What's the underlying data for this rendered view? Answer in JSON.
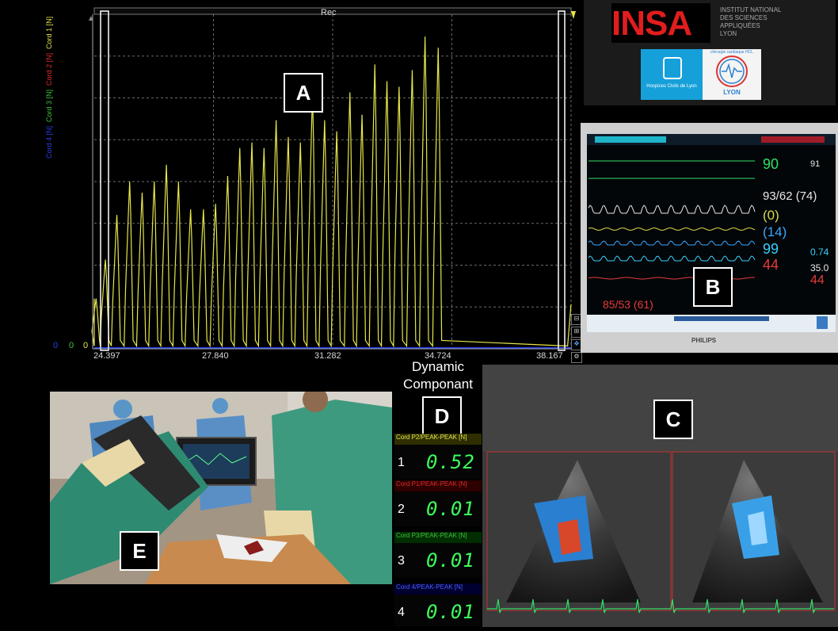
{
  "panel_a": {
    "label": "A",
    "header": "Rec",
    "legend": "Cord 4 [N]  Cord 3 [N]  Cord 2 [N]  Cord 1 [N]",
    "y_ticks": [
      "0",
      "0",
      "0"
    ],
    "x_ticks": [
      "24.397",
      "27.840",
      "31.282",
      "34.724",
      "38.167"
    ]
  },
  "chart_data": {
    "type": "line",
    "title": "Rec",
    "x": [
      24.397,
      24.62,
      24.95,
      25.3,
      25.65,
      26.0,
      26.35,
      26.7,
      27.05,
      27.4,
      27.75,
      28.1,
      28.45,
      28.8,
      29.15,
      29.5,
      29.85,
      30.2,
      30.55,
      30.9,
      31.25,
      31.6,
      31.95,
      32.3,
      32.65,
      33.0,
      33.35,
      33.7,
      34.05,
      34.4,
      34.75,
      35.1,
      35.45,
      35.8,
      36.15,
      36.5,
      36.85,
      37.2,
      37.55,
      37.9
    ],
    "peaks": [
      0.9,
      1.6,
      2.4,
      3.0,
      2.8,
      3.0,
      3.3,
      3.0,
      2.5,
      2.5,
      2.6,
      3.1,
      3.6,
      3.7,
      3.6,
      4.1,
      3.8,
      3.7,
      4.6,
      4.1,
      3.9,
      4.6,
      4.2,
      5.1,
      4.8,
      4.7,
      5.0,
      5.6,
      5.4
    ],
    "peak_times": [
      24.45,
      24.72,
      25.05,
      25.42,
      25.78,
      26.13,
      26.48,
      26.83,
      27.18,
      27.55,
      27.9,
      28.25,
      28.6,
      28.95,
      29.3,
      29.65,
      30.0,
      30.35,
      30.7,
      31.05,
      31.4,
      31.78,
      32.13,
      32.5,
      32.85,
      33.2,
      33.58,
      33.95,
      34.33
    ],
    "series": [
      {
        "name": "Cord 1 [N]",
        "color": "#e6e64a"
      }
    ],
    "xlim": [
      24.397,
      38.167
    ],
    "grid": true
  },
  "logo": {
    "insa": "INSA",
    "insa_sub": [
      "INSTITUT NATIONAL",
      "DES SCIENCES",
      "APPLIQUÉES",
      "LYON"
    ],
    "hcl": "Hospices Civils de Lyon",
    "ccl_ring": "chirurgie cardiaque HCL",
    "ccl_city": "LYON"
  },
  "panel_b": {
    "label": "B",
    "vitals": {
      "hr": "90",
      "hr_small": "91",
      "abp": "93/62 (74)",
      "cvp": "(0)",
      "paren14": "(14)",
      "spo2": "99",
      "spo2_small": "0.74",
      "temp": "35.0",
      "red44": "44",
      "red44b": "44",
      "pap": "85/53 (61)"
    },
    "brand": "PHILIPS"
  },
  "panel_c": {
    "label": "C"
  },
  "panel_d": {
    "label": "D",
    "title": "Dynamic Componant",
    "rows": [
      {
        "header": "Cord P2/PEAK-PEAK [N]",
        "index": "1",
        "value": "0.52",
        "color": "#e6e64a"
      },
      {
        "header": "Cord P1/PEAK-PEAK [N]",
        "index": "2",
        "value": "0.01",
        "color": "#e22b2b"
      },
      {
        "header": "Cord P3/PEAK-PEAK [N]",
        "index": "3",
        "value": "0.01",
        "color": "#3fc43f"
      },
      {
        "header": "Cord 4/PEAK-PEAK [N]",
        "index": "4",
        "value": "0.01",
        "color": "#2a3fe8"
      }
    ]
  },
  "panel_e": {
    "label": "E"
  },
  "colors": {
    "signal": "#e6e64a",
    "grid": "#6a6a6a",
    "insa_red": "#e11d1d",
    "readout_green": "#3cff5c"
  }
}
